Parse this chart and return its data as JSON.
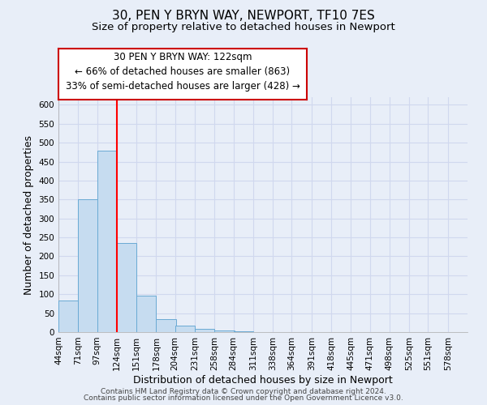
{
  "title": "30, PEN Y BRYN WAY, NEWPORT, TF10 7ES",
  "subtitle": "Size of property relative to detached houses in Newport",
  "xlabel": "Distribution of detached houses by size in Newport",
  "ylabel": "Number of detached properties",
  "bar_color": "#c6dcf0",
  "bar_edgecolor": "#6aaad4",
  "background_color": "#e8eef8",
  "grid_color": "#d0d8ee",
  "red_line_x": 124,
  "bins_left": [
    44,
    71,
    97,
    124,
    151,
    178,
    204,
    231,
    258,
    284,
    311,
    338,
    364,
    391,
    418,
    445,
    471,
    498,
    525,
    551,
    578
  ],
  "counts": [
    83,
    350,
    478,
    236,
    97,
    35,
    18,
    8,
    4,
    2,
    0,
    0,
    0,
    0,
    1,
    0,
    0,
    0,
    0,
    0,
    1
  ],
  "tick_labels": [
    "44sqm",
    "71sqm",
    "97sqm",
    "124sqm",
    "151sqm",
    "178sqm",
    "204sqm",
    "231sqm",
    "258sqm",
    "284sqm",
    "311sqm",
    "338sqm",
    "364sqm",
    "391sqm",
    "418sqm",
    "445sqm",
    "471sqm",
    "498sqm",
    "525sqm",
    "551sqm",
    "578sqm"
  ],
  "ylim": [
    0,
    620
  ],
  "yticks": [
    0,
    50,
    100,
    150,
    200,
    250,
    300,
    350,
    400,
    450,
    500,
    550,
    600
  ],
  "annotation_text": "30 PEN Y BRYN WAY: 122sqm\n← 66% of detached houses are smaller (863)\n33% of semi-detached houses are larger (428) →",
  "annotation_box_color": "#ffffff",
  "annotation_box_edgecolor": "#cc0000",
  "footer_line1": "Contains HM Land Registry data © Crown copyright and database right 2024.",
  "footer_line2": "Contains public sector information licensed under the Open Government Licence v3.0.",
  "title_fontsize": 11,
  "subtitle_fontsize": 9.5,
  "axis_label_fontsize": 9,
  "tick_fontsize": 7.5,
  "annotation_fontsize": 8.5,
  "footer_fontsize": 6.5
}
